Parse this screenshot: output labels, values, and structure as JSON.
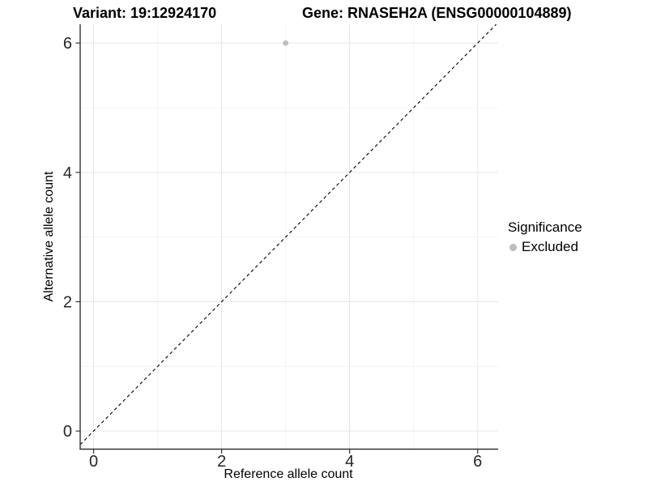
{
  "chart_data": {
    "type": "scatter",
    "title_left": "Variant: 19:12924170",
    "title_right": "Gene: RNASEH2A (ENSG00000104889)",
    "xlabel": "Reference allele count",
    "ylabel": "Alternative allele count",
    "xlim": [
      -0.21,
      6.32
    ],
    "ylim": [
      -0.28,
      6.29
    ],
    "xticks": [
      0,
      2,
      4,
      6
    ],
    "yticks": [
      0,
      2,
      4,
      6
    ],
    "x_minor_ticks": [
      1,
      3,
      5
    ],
    "y_minor_ticks": [
      1,
      3,
      5
    ],
    "grid": "on",
    "background": "#ffffff",
    "points": [
      {
        "x": 3,
        "y": 6,
        "series": "Excluded",
        "color": "#bdbdbd"
      }
    ],
    "reference_line": {
      "type": "identity",
      "slope": 1,
      "intercept": 0,
      "style": "dashed",
      "color": "#000000"
    },
    "legend": {
      "title": "Significance",
      "position": "right",
      "items": [
        {
          "label": "Excluded",
          "color": "#bdbdbd",
          "marker": "circle"
        }
      ]
    },
    "colors": {
      "grid_major": "#e6e6e6",
      "grid_minor": "#f0f0f0",
      "axis_line": "#333333",
      "tick_text": "#262626"
    }
  }
}
